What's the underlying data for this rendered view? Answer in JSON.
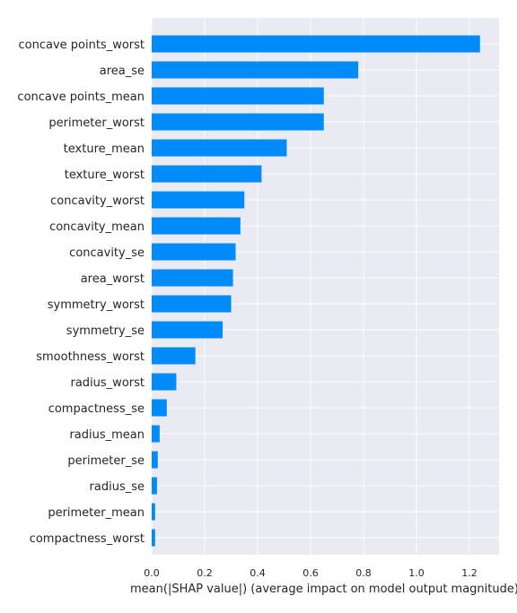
{
  "chart_data": {
    "type": "bar",
    "orientation": "horizontal",
    "categories": [
      "concave points_worst",
      "area_se",
      "concave points_mean",
      "perimeter_worst",
      "texture_mean",
      "texture_worst",
      "concavity_worst",
      "concavity_mean",
      "concavity_se",
      "area_worst",
      "symmetry_worst",
      "symmetry_se",
      "smoothness_worst",
      "radius_worst",
      "compactness_se",
      "radius_mean",
      "perimeter_se",
      "radius_se",
      "perimeter_mean",
      "compactness_worst"
    ],
    "values": [
      1.24,
      0.78,
      0.65,
      0.65,
      0.51,
      0.415,
      0.35,
      0.335,
      0.317,
      0.307,
      0.3,
      0.268,
      0.165,
      0.093,
      0.057,
      0.03,
      0.023,
      0.02,
      0.013,
      0.013
    ],
    "xlabel": "mean(|SHAP value|) (average impact on model output magnitude)",
    "xlim": [
      0,
      1.31
    ],
    "xticks": [
      0.0,
      0.2,
      0.4,
      0.6,
      0.8,
      1.0,
      1.2
    ],
    "xtick_labels": [
      "0.0",
      "0.2",
      "0.4",
      "0.6",
      "0.8",
      "1.0",
      "1.2"
    ],
    "grid": true,
    "bar_color": "#008bfb",
    "background_color": "#eaeaf2",
    "grid_color": "#ffffff"
  }
}
